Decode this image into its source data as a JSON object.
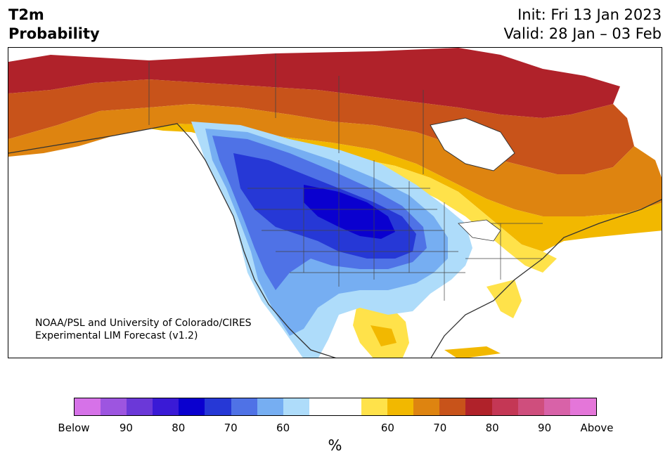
{
  "title": {
    "line1": "T2m",
    "line2": "Probability"
  },
  "valid_info": {
    "init": "Init: Fri 13 Jan 2023",
    "valid": "Valid: 28 Jan – 03 Feb"
  },
  "credit": {
    "line1": "NOAA/PSL and University of Colorado/CIRES",
    "line2": "Experimental LIM Forecast (v1.2)"
  },
  "colorbar": {
    "unit": "%",
    "colors": [
      "#d672e8",
      "#9d55e0",
      "#6b38d8",
      "#3a1ad6",
      "#0a00cf",
      "#2638d6",
      "#4f72e6",
      "#76aef2",
      "#aedcfa",
      "#ffffff",
      "#ffffff",
      "#ffe24a",
      "#f2b800",
      "#de8410",
      "#c8531a",
      "#b0222a",
      "#c43755",
      "#cf4e7d",
      "#d862a8",
      "#e476d9"
    ],
    "tick_labels": [
      "Below",
      "90",
      "80",
      "70",
      "60",
      "60",
      "70",
      "80",
      "90",
      "Above"
    ]
  },
  "map": {
    "region": "North America",
    "categories": {
      "below_normal": [
        "#aedcfa",
        "#76aef2",
        "#4f72e6",
        "#2638d6",
        "#0a00cf"
      ],
      "above_normal": [
        "#ffe24a",
        "#f2b800",
        "#de8410",
        "#c8531a",
        "#b0222a"
      ]
    }
  }
}
